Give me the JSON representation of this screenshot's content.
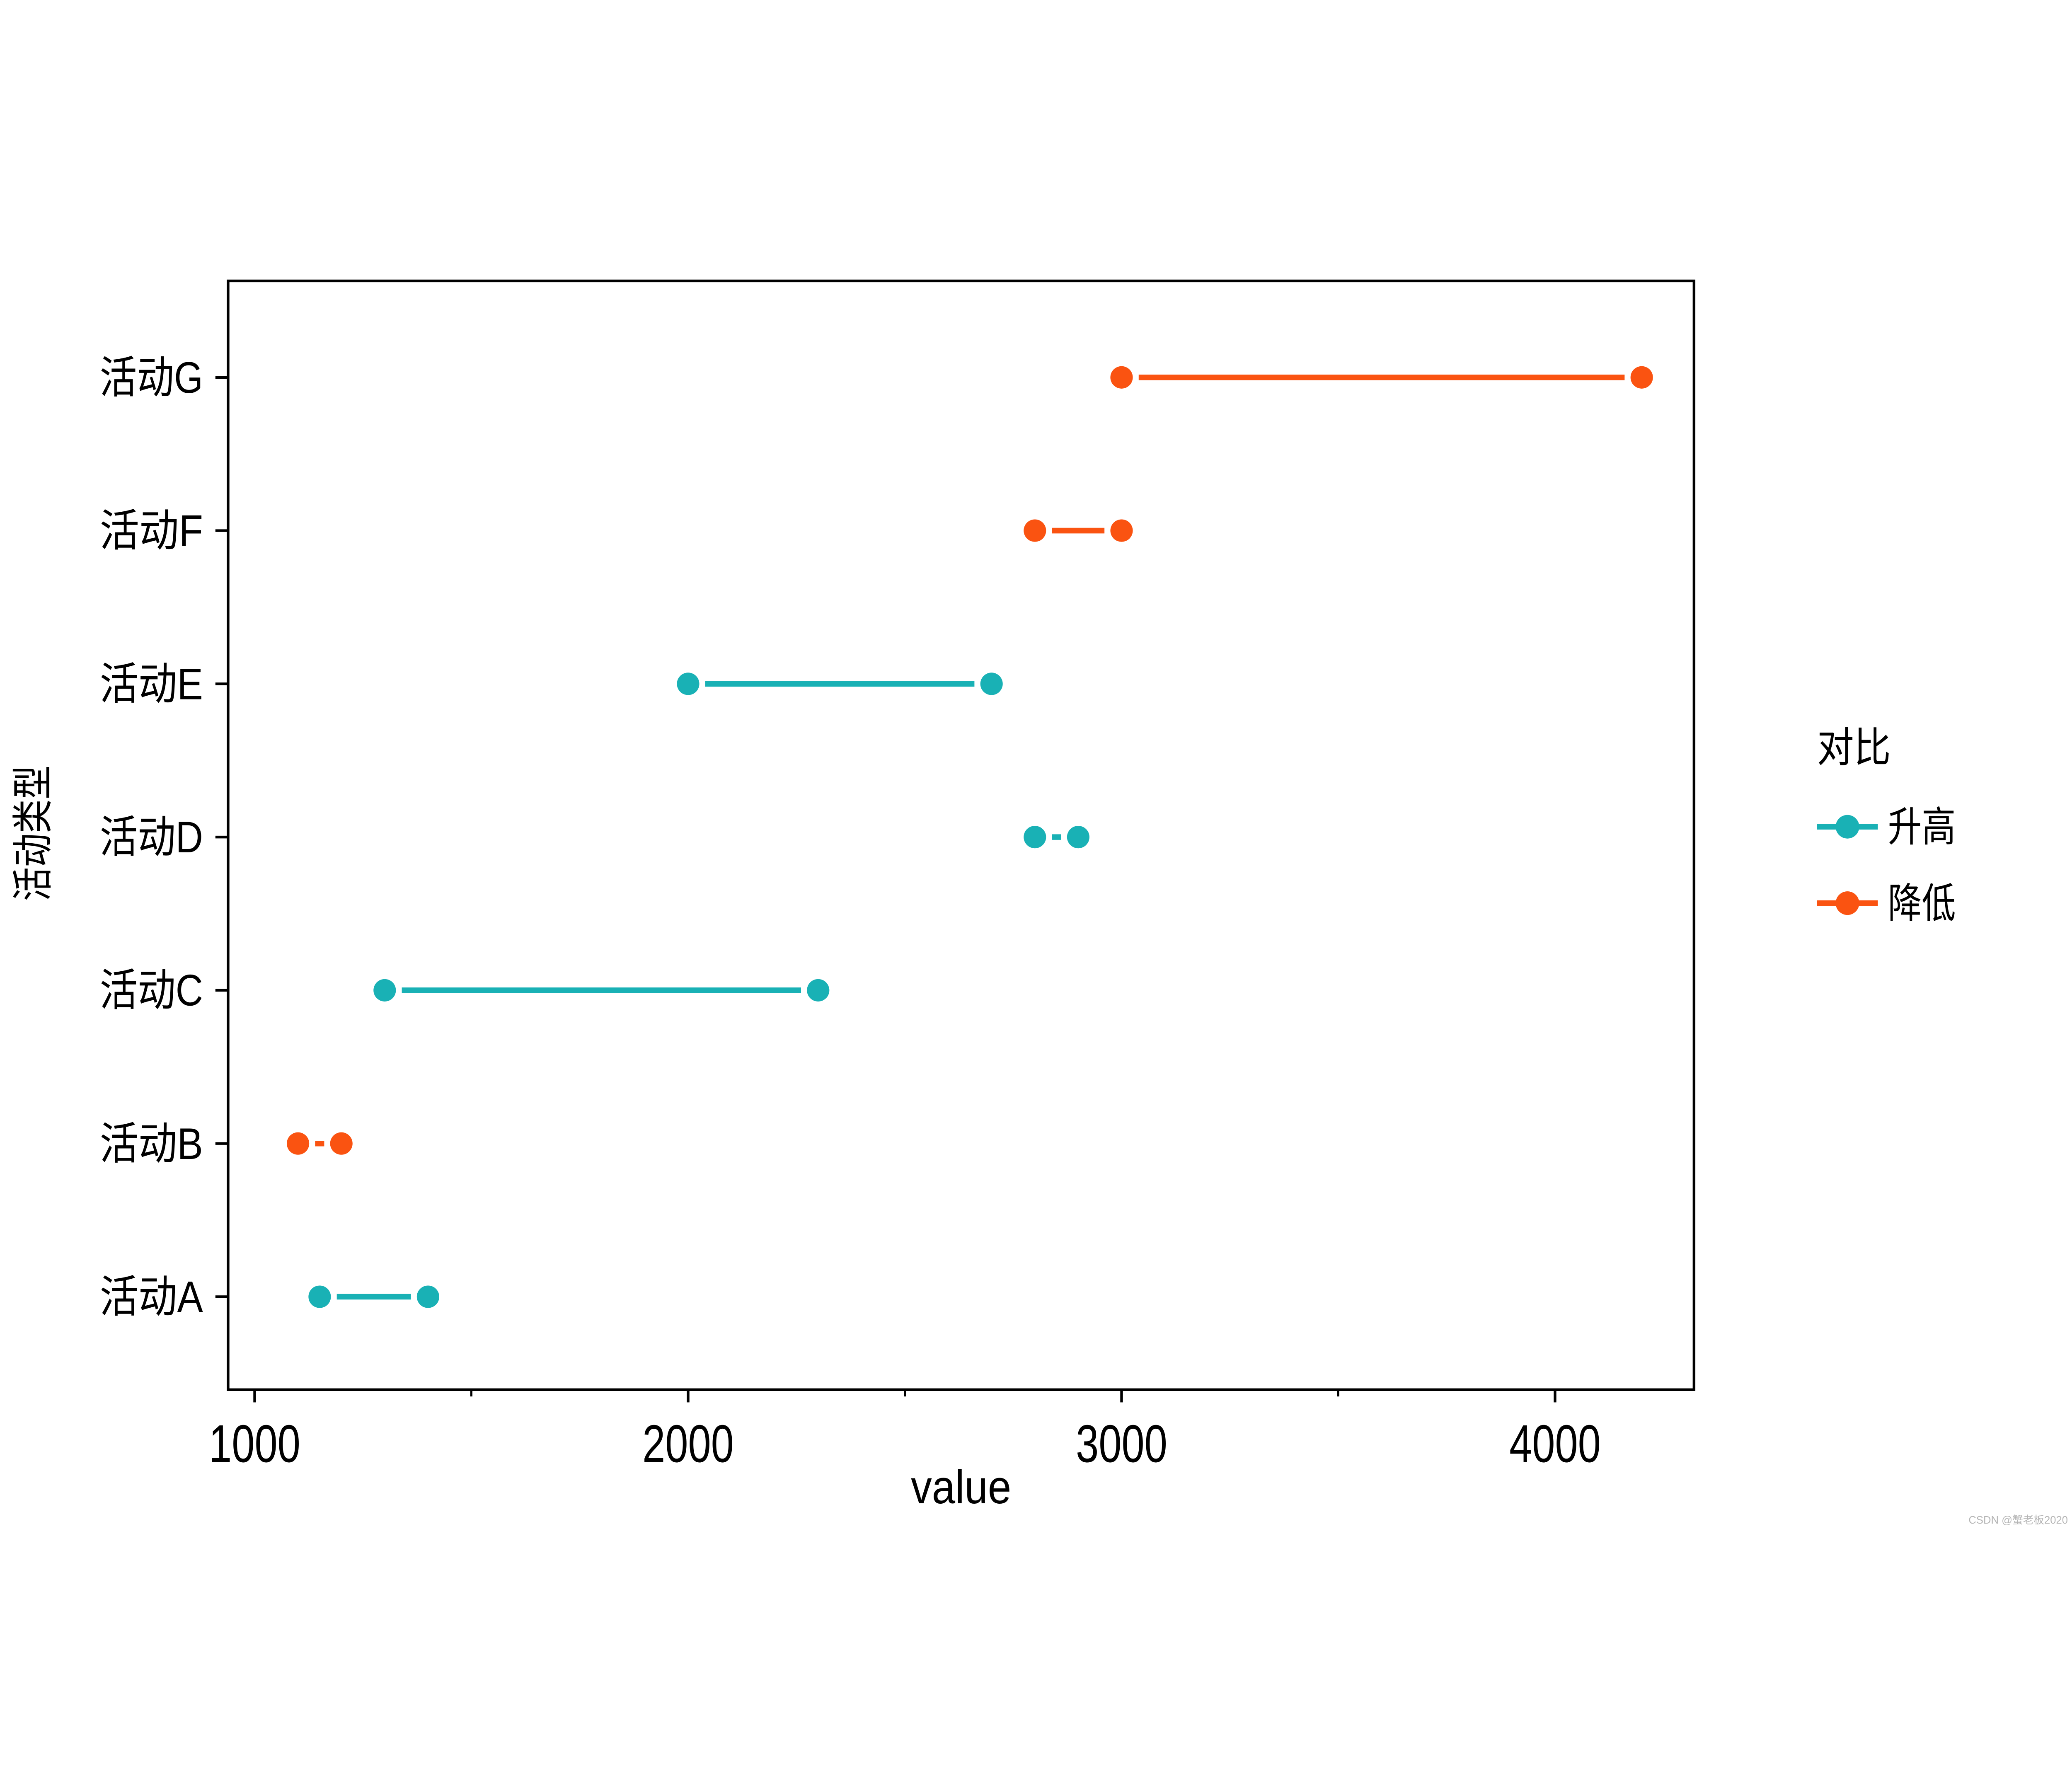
{
  "page": {
    "background": "#ffffff"
  },
  "watermark": "CSDN @蟹老板2020",
  "chart_data": {
    "type": "dumbbell",
    "title": "",
    "xlabel": "value",
    "ylabel": "活动类型",
    "categories": [
      "活动A",
      "活动B",
      "活动C",
      "活动D",
      "活动E",
      "活动F",
      "活动G"
    ],
    "x_axis": {
      "ticks": [
        {
          "label": "1000",
          "value": 1000
        },
        {
          "label": "2000",
          "value": 2000
        },
        {
          "label": "3000",
          "value": 3000
        },
        {
          "label": "4000",
          "value": 4000
        }
      ],
      "minor_ticks": [
        1500,
        2500,
        3500
      ],
      "range": [
        939,
        4321
      ],
      "grid": false
    },
    "legend": {
      "title": "对比",
      "position": "right",
      "entries": [
        {
          "label": "升高",
          "color": "#19b1b5"
        },
        {
          "label": "降低",
          "color": "#fa5311"
        }
      ]
    },
    "rows": [
      {
        "category": "活动A",
        "group": "升高",
        "start": 1150,
        "end": 1400
      },
      {
        "category": "活动B",
        "group": "降低",
        "start": 1100,
        "end": 1200
      },
      {
        "category": "活动C",
        "group": "升高",
        "start": 1300,
        "end": 2300
      },
      {
        "category": "活动D",
        "group": "升高",
        "start": 2800,
        "end": 2900
      },
      {
        "category": "活动E",
        "group": "升高",
        "start": 2000,
        "end": 2700
      },
      {
        "category": "活动F",
        "group": "降低",
        "start": 2800,
        "end": 3000
      },
      {
        "category": "活动G",
        "group": "降低",
        "start": 3000,
        "end": 4200
      }
    ]
  }
}
